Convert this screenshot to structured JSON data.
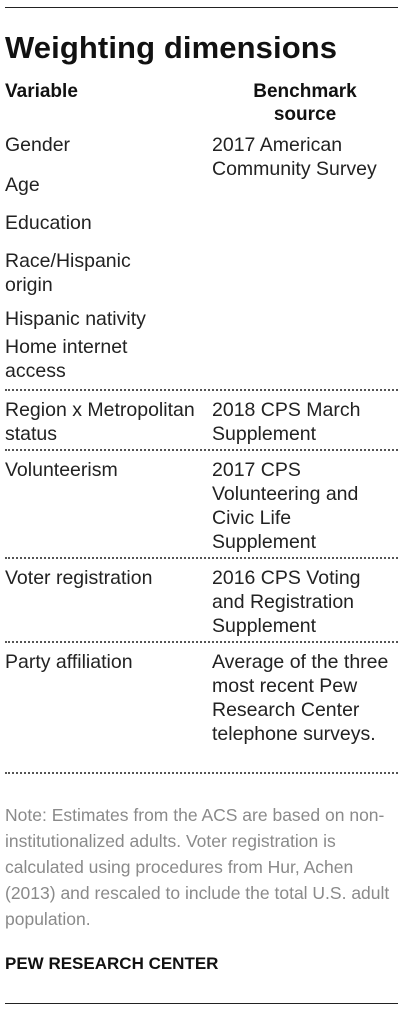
{
  "title": "Weighting dimensions",
  "headers": {
    "variable": "Variable",
    "benchmark": "Benchmark source"
  },
  "rows": [
    {
      "variables": [
        "Gender",
        "Age",
        "Education",
        "Race/Hispanic origin",
        "Hispanic nativity",
        "Home internet access"
      ],
      "source": "2017 American Community Survey"
    },
    {
      "variables": [
        "Region x Metropolitan status"
      ],
      "source": "2018 CPS March Supplement"
    },
    {
      "variables": [
        "Volunteerism"
      ],
      "source": "2017 CPS Volunteering and Civic Life Supplement"
    },
    {
      "variables": [
        "Voter registration"
      ],
      "source": "2016 CPS Voting and Registration Supplement"
    },
    {
      "variables": [
        "Party affiliation"
      ],
      "source": "Average of the three most recent Pew Research Center telephone surveys."
    }
  ],
  "note": "Note: Estimates from the ACS are based on non-institutionalized adults. Voter registration is calculated using procedures from Hur, Achen (2013) and rescaled to include the total U.S. adult population.",
  "credit": "PEW RESEARCH CENTER"
}
